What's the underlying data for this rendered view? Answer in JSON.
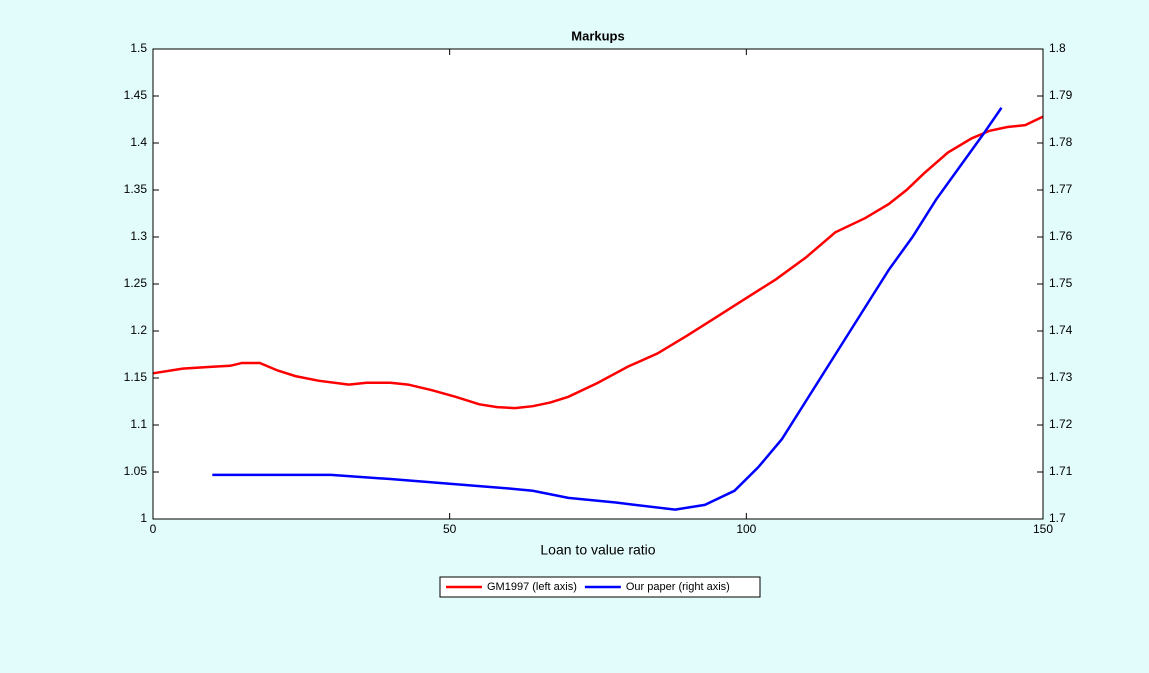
{
  "chart_data": {
    "type": "line",
    "title": "Markups",
    "x_label": "Loan to value ratio",
    "xlim": [
      0,
      150
    ],
    "xticks": [
      0,
      50,
      100,
      150
    ],
    "ylim": [
      1,
      1.5
    ],
    "yticks": [
      1,
      1.05,
      1.1,
      1.15,
      1.2,
      1.25,
      1.3,
      1.35,
      1.4,
      1.45,
      1.5
    ],
    "y2lim": [
      1.7,
      1.8
    ],
    "y2ticks": [
      1.7,
      1.71,
      1.72,
      1.73,
      1.74,
      1.75,
      1.76,
      1.77,
      1.78,
      1.79,
      1.8
    ],
    "legend": "bottom",
    "series": [
      {
        "name": "GM1997 (left axis)",
        "color": "#ff0000",
        "axis": "y",
        "x": [
          0,
          5,
          10,
          13,
          15,
          18,
          21,
          24,
          28,
          33,
          36,
          40,
          43,
          47,
          51,
          55,
          58,
          61,
          64,
          67,
          70,
          75,
          80,
          85,
          90,
          95,
          100,
          105,
          110,
          115,
          120,
          124,
          127,
          130,
          134,
          138,
          141,
          144,
          147,
          150
        ],
        "values": [
          1.155,
          1.16,
          1.162,
          1.163,
          1.166,
          1.166,
          1.158,
          1.152,
          1.147,
          1.143,
          1.145,
          1.145,
          1.143,
          1.137,
          1.13,
          1.122,
          1.119,
          1.118,
          1.12,
          1.124,
          1.13,
          1.145,
          1.162,
          1.176,
          1.195,
          1.215,
          1.235,
          1.255,
          1.278,
          1.305,
          1.32,
          1.335,
          1.35,
          1.368,
          1.39,
          1.405,
          1.413,
          1.417,
          1.419,
          1.428
        ]
      },
      {
        "name": "Our paper (right axis)",
        "color": "#0000ff",
        "axis": "y2",
        "x": [
          10,
          30,
          40,
          50,
          60,
          64,
          70,
          78,
          88,
          93,
          98,
          102,
          106,
          110,
          115,
          120,
          124,
          128,
          132,
          136,
          140,
          143
        ],
        "values": [
          1.7094,
          1.7094,
          1.7085,
          1.7075,
          1.7065,
          1.706,
          1.7045,
          1.7035,
          1.702,
          1.703,
          1.706,
          1.711,
          1.717,
          1.725,
          1.735,
          1.745,
          1.753,
          1.76,
          1.768,
          1.775,
          1.782,
          1.7875
        ]
      }
    ]
  }
}
